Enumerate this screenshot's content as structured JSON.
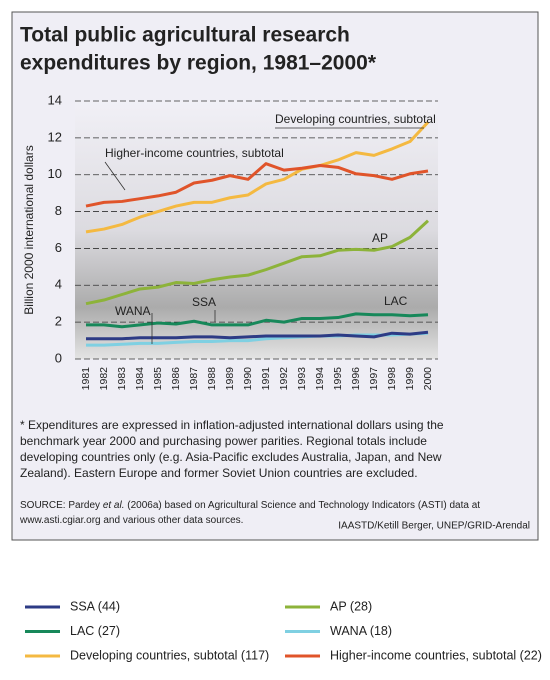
{
  "chart_data": {
    "type": "line",
    "title": [
      "Total public agricultural research",
      "expenditures by region, 1981–2000*"
    ],
    "y_label": "Billion 2000 international dollars",
    "categories": [
      "1981",
      "1982",
      "1983",
      "1984",
      "1985",
      "1986",
      "1987",
      "1988",
      "1989",
      "1990",
      "1991",
      "1992",
      "1993",
      "1994",
      "1995",
      "1996",
      "1997",
      "1998",
      "1999",
      "2000"
    ],
    "ylim": [
      0,
      14
    ],
    "yticks": [
      0,
      2,
      4,
      6,
      8,
      10,
      12,
      14
    ],
    "grid": true,
    "series": [
      {
        "name": "SSA (44)",
        "color": "#2d3b85",
        "values": [
          1.1,
          1.1,
          1.1,
          1.15,
          1.15,
          1.15,
          1.2,
          1.2,
          1.15,
          1.2,
          1.25,
          1.25,
          1.25,
          1.25,
          1.3,
          1.25,
          1.2,
          1.4,
          1.35,
          1.45
        ]
      },
      {
        "name": "AP (28)",
        "color": "#8db33a",
        "values": [
          3.0,
          3.2,
          3.5,
          3.8,
          3.9,
          4.15,
          4.1,
          4.3,
          4.45,
          4.55,
          4.85,
          5.2,
          5.55,
          5.6,
          5.9,
          5.95,
          5.9,
          6.1,
          6.6,
          7.5
        ]
      },
      {
        "name": "LAC (27)",
        "color": "#17885a",
        "values": [
          1.85,
          1.85,
          1.75,
          1.85,
          1.95,
          1.9,
          2.05,
          1.85,
          1.85,
          1.85,
          2.1,
          2.0,
          2.2,
          2.2,
          2.25,
          2.45,
          2.4,
          2.4,
          2.35,
          2.4
        ]
      },
      {
        "name": "WANA (18)",
        "color": "#7fd0e2",
        "values": [
          0.75,
          0.75,
          0.8,
          0.85,
          0.85,
          0.9,
          0.95,
          0.95,
          1.0,
          1.0,
          1.1,
          1.15,
          1.2,
          1.25,
          1.25,
          1.3,
          1.3,
          1.3,
          1.35,
          1.4
        ]
      },
      {
        "name": "Developing countries, subtotal (117)",
        "color": "#f4b941",
        "values": [
          6.9,
          7.05,
          7.3,
          7.7,
          8.0,
          8.3,
          8.5,
          8.5,
          8.75,
          8.9,
          9.5,
          9.75,
          10.3,
          10.5,
          10.8,
          11.2,
          11.05,
          11.4,
          11.8,
          12.85
        ]
      },
      {
        "name": "Higher-income countries, subtotal (22)",
        "color": "#e0542a",
        "values": [
          8.3,
          8.5,
          8.55,
          8.7,
          8.85,
          9.05,
          9.55,
          9.7,
          9.95,
          9.75,
          10.6,
          10.25,
          10.35,
          10.5,
          10.4,
          10.05,
          9.95,
          9.75,
          10.05,
          10.2
        ]
      }
    ],
    "annotations": [
      "Developing countries, subtotal",
      "Higher-income countries, subtotal",
      "AP",
      "SSA",
      "WANA",
      "LAC"
    ],
    "footnote": [
      "* Expenditures are expressed in inflation-adjusted international dollars using the",
      "benchmark year 2000 and purchasing power parities. Regional totals include",
      "developing countries only (e.g. Asia-Pacific excludes Australia, Japan, and New",
      "Zealand). Eastern Europe and former Soviet Union countries are excluded."
    ],
    "source": [
      [
        "SOURCE: Pardey ",
        "et al.",
        " (2006a) based on Agricultural Science and Technology Indicators (ASTI) data at"
      ],
      [
        "www.asti.cgiar.org and various other data sources."
      ]
    ],
    "credit": "IAASTD/Ketill Berger, UNEP/GRID-Arendal"
  }
}
